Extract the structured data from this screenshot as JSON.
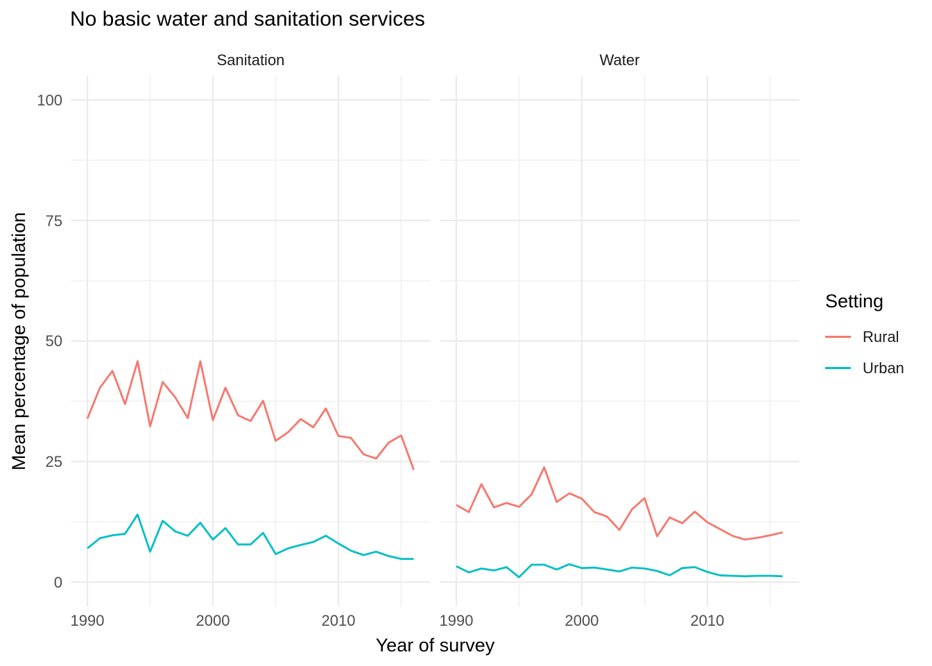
{
  "title": "No basic water and sanitation services",
  "axes": {
    "x_title": "Year of survey",
    "y_title": "Mean percentage of population",
    "y_ticks": [
      "0",
      "25",
      "50",
      "75",
      "100"
    ],
    "x_ticks": [
      "1990",
      "2000",
      "2010"
    ]
  },
  "legend": {
    "title": "Setting",
    "items": [
      {
        "label": "Rural",
        "color": "#F8766D"
      },
      {
        "label": "Urban",
        "color": "#00BFC4"
      }
    ]
  },
  "colors": {
    "rural": "#F8766D",
    "urban": "#00BFC4",
    "grid_major": "#EBEBEB",
    "grid_minor": "#F0F0F0",
    "tick_text": "#4d4d4d",
    "background": "#ffffff"
  },
  "chart_data": {
    "type": "line",
    "title": "No basic water and sanitation services",
    "xlabel": "Year of survey",
    "ylabel": "Mean percentage of population",
    "xlim": [
      1988.7,
      2017.3
    ],
    "ylim": [
      0,
      100
    ],
    "grid": {
      "x_major": [
        1990,
        2000,
        2010
      ],
      "x_minor": [
        1995,
        2005,
        2015
      ],
      "y_major": [
        0,
        25,
        50,
        75,
        100
      ],
      "y_minor": [
        12.5,
        37.5,
        62.5,
        87.5
      ]
    },
    "legend_position": "right",
    "x": [
      1990,
      1991,
      1992,
      1993,
      1994,
      1995,
      1996,
      1997,
      1998,
      1999,
      2000,
      2001,
      2002,
      2003,
      2004,
      2005,
      2006,
      2007,
      2008,
      2009,
      2010,
      2011,
      2012,
      2013,
      2014,
      2015,
      2016
    ],
    "facets": [
      {
        "label": "Sanitation",
        "series": [
          {
            "name": "Rural",
            "color": "#F8766D",
            "values": [
              33.9,
              40.3,
              43.8,
              36.9,
              45.8,
              32.3,
              41.5,
              38.3,
              34.0,
              45.8,
              33.6,
              40.3,
              34.6,
              33.4,
              37.6,
              29.3,
              31.1,
              33.8,
              32.1,
              36.0,
              30.3,
              29.9,
              26.5,
              25.6,
              28.9,
              30.4,
              23.3
            ]
          },
          {
            "name": "Urban",
            "color": "#00BFC4",
            "values": [
              7.0,
              9.1,
              9.7,
              10.0,
              14.0,
              6.3,
              12.7,
              10.5,
              9.6,
              12.3,
              8.8,
              11.2,
              7.8,
              7.8,
              10.2,
              5.8,
              7.0,
              7.7,
              8.3,
              9.6,
              8.0,
              6.5,
              5.6,
              6.3,
              5.4,
              4.8,
              4.8
            ]
          }
        ]
      },
      {
        "label": "Water",
        "series": [
          {
            "name": "Rural",
            "color": "#F8766D",
            "values": [
              16.0,
              14.5,
              20.3,
              15.5,
              16.4,
              15.6,
              18.2,
              23.8,
              16.6,
              18.4,
              17.3,
              14.5,
              13.6,
              10.8,
              15.1,
              17.4,
              9.5,
              13.4,
              12.2,
              14.6,
              12.4,
              11.0,
              9.6,
              8.8,
              9.2,
              9.7,
              10.3
            ]
          },
          {
            "name": "Urban",
            "color": "#00BFC4",
            "values": [
              3.3,
              2.0,
              2.8,
              2.4,
              3.1,
              1.0,
              3.6,
              3.6,
              2.6,
              3.7,
              2.9,
              3.0,
              2.6,
              2.2,
              3.0,
              2.8,
              2.3,
              1.4,
              2.9,
              3.1,
              2.1,
              1.4,
              1.3,
              1.2,
              1.3,
              1.3,
              1.2
            ]
          }
        ]
      }
    ]
  }
}
